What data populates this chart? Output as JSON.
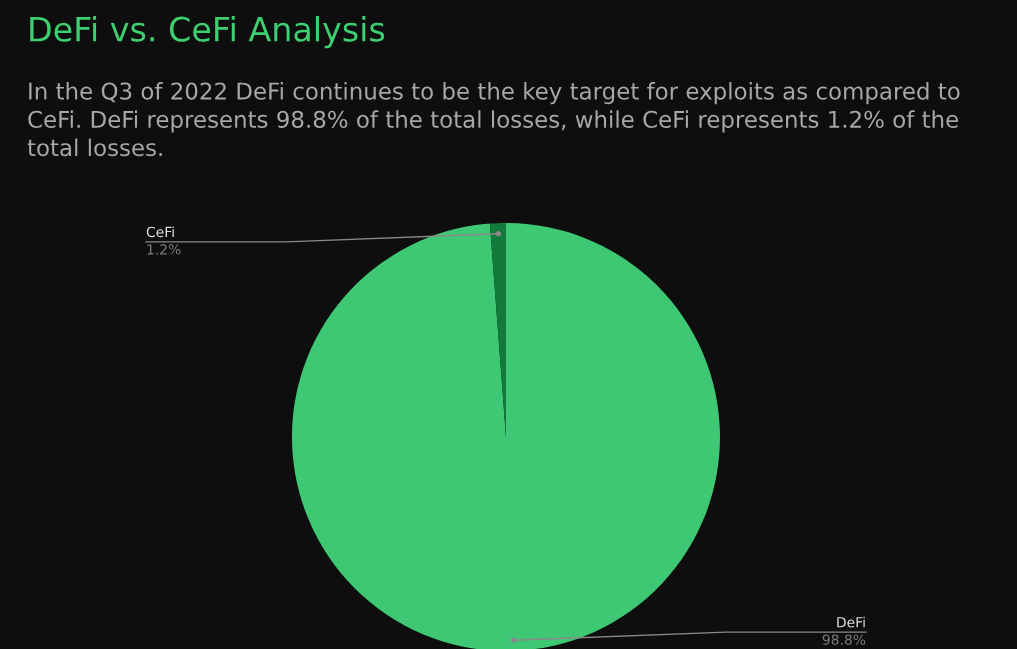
{
  "chart_data": {
    "type": "pie",
    "title": "DeFi vs. CeFi Analysis",
    "subtitle": "In the Q3 of 2022 DeFi continues to be the key target for exploits as compared to CeFi. DeFi represents 98.8% of the total losses, while CeFi represents 1.2% of the total losses.",
    "categories": [
      "DeFi",
      "CeFi"
    ],
    "values": [
      98.8,
      1.2
    ],
    "colors": [
      "#3ec873",
      "#127a3a"
    ],
    "value_labels": [
      "98.8%",
      "1.2%"
    ]
  }
}
